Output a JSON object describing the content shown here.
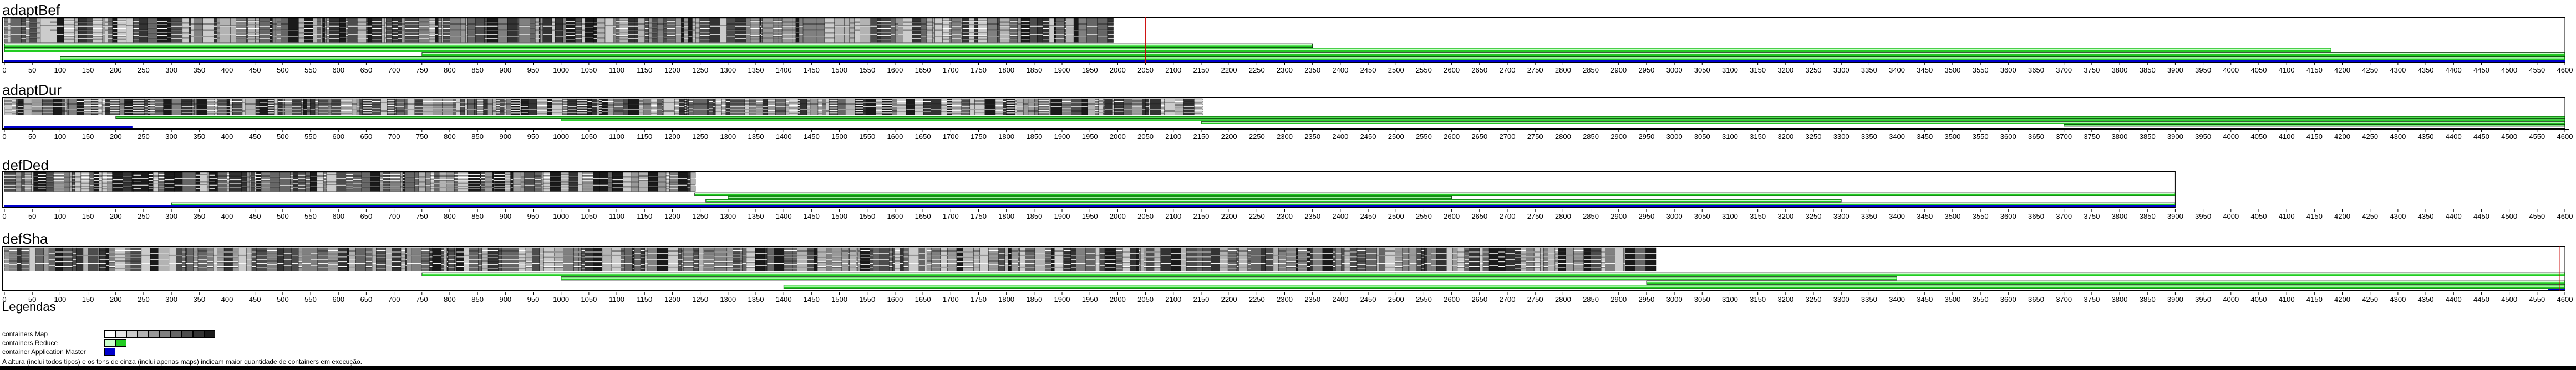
{
  "axis": {
    "min": 0,
    "max": 4600,
    "tick_step": 50
  },
  "colors": {
    "map": "#4a4a4a",
    "reduce": "#22cc22",
    "app_master": "#0000cc",
    "marker": "#cc0000",
    "grid": "#000000"
  },
  "chart_data": [
    {
      "type": "gantt",
      "title": "adaptBef",
      "end_time": 4600,
      "xlim": [
        0,
        4600
      ],
      "map_phase": [
        0,
        1990
      ],
      "reduce_spans": [
        [
          0,
          2350
        ],
        [
          0,
          4180
        ],
        [
          750,
          4600
        ],
        [
          100,
          4600
        ]
      ],
      "app_master_spans": [
        [
          0,
          3600
        ],
        [
          3600,
          4180
        ],
        [
          4180,
          4600
        ]
      ],
      "marker_time": 2050
    },
    {
      "type": "gantt",
      "title": "adaptDur",
      "end_time": 4600,
      "xlim": [
        0,
        4600
      ],
      "map_phase": [
        0,
        2150
      ],
      "reduce_spans": [
        [
          200,
          4600
        ],
        [
          1000,
          4600
        ],
        [
          2150,
          4600
        ],
        [
          3700,
          4600
        ]
      ],
      "app_master_spans": [
        [
          0,
          230
        ]
      ],
      "marker_time": null
    },
    {
      "type": "gantt",
      "title": "defDed",
      "end_time": 3900,
      "xlim": [
        0,
        4600
      ],
      "map_phase": [
        0,
        1240
      ],
      "reduce_spans": [
        [
          1240,
          3900
        ],
        [
          1300,
          2600
        ],
        [
          1260,
          3300
        ],
        [
          300,
          3900
        ]
      ],
      "app_master_spans": [
        [
          0,
          3900
        ]
      ],
      "marker_time": null
    },
    {
      "type": "gantt",
      "title": "defSha",
      "end_time": 4600,
      "xlim": [
        0,
        4600
      ],
      "map_phase": [
        0,
        2950
      ],
      "reduce_spans": [
        [
          750,
          4600
        ],
        [
          1000,
          3400
        ],
        [
          2950,
          4600
        ],
        [
          1400,
          4600
        ]
      ],
      "app_master_spans": [
        [
          4570,
          4600
        ]
      ],
      "marker_time": 4590
    }
  ],
  "legend": {
    "title": "Legendas",
    "map_label": "containers Map",
    "reduce_label": "containers Reduce",
    "app_master_label": "container Application Master",
    "map_shades": [
      "#ffffff",
      "#e6e6e6",
      "#cccccc",
      "#b3b3b3",
      "#999999",
      "#808080",
      "#666666",
      "#4d4d4d",
      "#333333",
      "#1a1a1a"
    ],
    "reduce_shades": [
      "#ccffcc",
      "#22cc22"
    ],
    "app_master_shades": [
      "#0000cc"
    ],
    "note": "A altura (inclui todos tipos) e os tons de cinza (inclui apenas maps) indicam maior quantidade de containers em execução."
  }
}
